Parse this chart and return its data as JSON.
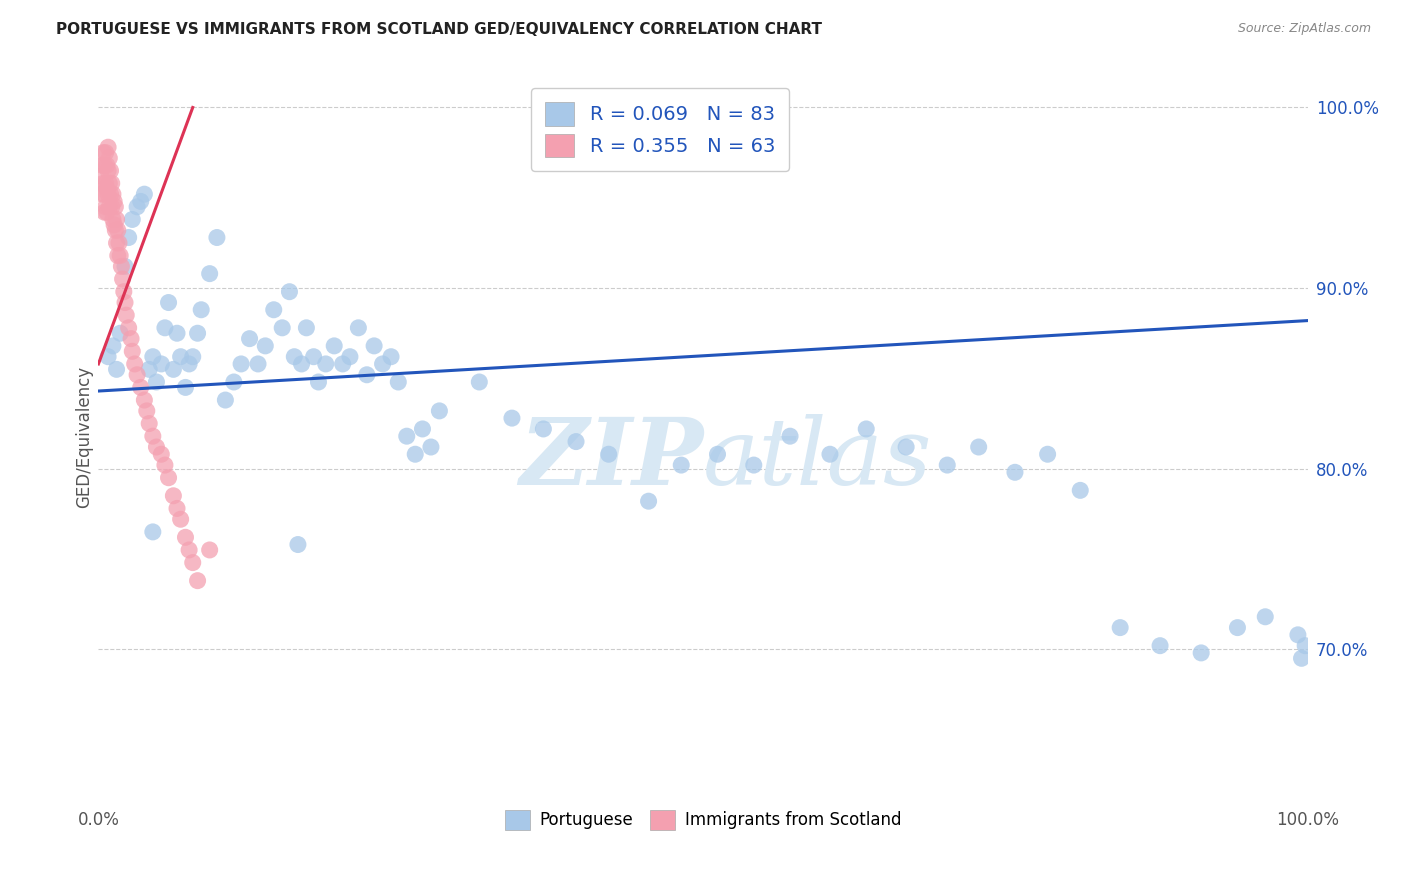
{
  "title": "PORTUGUESE VS IMMIGRANTS FROM SCOTLAND GED/EQUIVALENCY CORRELATION CHART",
  "source": "Source: ZipAtlas.com",
  "ylabel": "GED/Equivalency",
  "legend_r1": "R = 0.069",
  "legend_n1": "N = 83",
  "legend_r2": "R = 0.355",
  "legend_n2": "N = 63",
  "legend_label1": "Portuguese",
  "legend_label2": "Immigrants from Scotland",
  "blue_color": "#a8c8e8",
  "pink_color": "#f4a0b0",
  "blue_line_color": "#2255bb",
  "pink_line_color": "#dd3355",
  "watermark_color": "#d8e8f4",
  "title_color": "#222222",
  "source_color": "#888888",
  "ylabel_color": "#555555",
  "tick_color": "#555555",
  "ytick_color": "#2255bb",
  "grid_color": "#cccccc",
  "legend_text_color": "#2255bb",
  "xlim": [
    0.0,
    1.0
  ],
  "ylim": [
    0.615,
    1.02
  ],
  "yticks": [
    0.7,
    0.8,
    0.9,
    1.0
  ],
  "ytick_labels": [
    "70.0%",
    "80.0%",
    "90.0%",
    "100.0%"
  ],
  "xtick_positions": [
    0.0,
    1.0
  ],
  "xtick_labels": [
    "0.0%",
    "100.0%"
  ],
  "blue_trend_x": [
    0.0,
    1.0
  ],
  "blue_trend_y": [
    0.843,
    0.882
  ],
  "pink_trend_x": [
    0.0,
    0.078
  ],
  "pink_trend_y": [
    0.858,
    1.0
  ],
  "blue_x": [
    0.008,
    0.012,
    0.015,
    0.018,
    0.022,
    0.025,
    0.028,
    0.032,
    0.035,
    0.038,
    0.042,
    0.045,
    0.048,
    0.052,
    0.055,
    0.058,
    0.062,
    0.065,
    0.068,
    0.072,
    0.075,
    0.078,
    0.082,
    0.085,
    0.092,
    0.098,
    0.105,
    0.112,
    0.118,
    0.125,
    0.132,
    0.138,
    0.145,
    0.152,
    0.158,
    0.162,
    0.168,
    0.172,
    0.178,
    0.182,
    0.188,
    0.195,
    0.202,
    0.208,
    0.215,
    0.222,
    0.228,
    0.235,
    0.242,
    0.248,
    0.255,
    0.262,
    0.268,
    0.275,
    0.282,
    0.315,
    0.342,
    0.368,
    0.395,
    0.422,
    0.455,
    0.482,
    0.512,
    0.542,
    0.572,
    0.605,
    0.635,
    0.668,
    0.702,
    0.728,
    0.758,
    0.785,
    0.812,
    0.845,
    0.878,
    0.912,
    0.942,
    0.965,
    0.992,
    0.995,
    0.998,
    0.045,
    0.165
  ],
  "blue_y": [
    0.862,
    0.868,
    0.855,
    0.875,
    0.912,
    0.928,
    0.938,
    0.945,
    0.948,
    0.952,
    0.855,
    0.862,
    0.848,
    0.858,
    0.878,
    0.892,
    0.855,
    0.875,
    0.862,
    0.845,
    0.858,
    0.862,
    0.875,
    0.888,
    0.908,
    0.928,
    0.838,
    0.848,
    0.858,
    0.872,
    0.858,
    0.868,
    0.888,
    0.878,
    0.898,
    0.862,
    0.858,
    0.878,
    0.862,
    0.848,
    0.858,
    0.868,
    0.858,
    0.862,
    0.878,
    0.852,
    0.868,
    0.858,
    0.862,
    0.848,
    0.818,
    0.808,
    0.822,
    0.812,
    0.832,
    0.848,
    0.828,
    0.822,
    0.815,
    0.808,
    0.782,
    0.802,
    0.808,
    0.802,
    0.818,
    0.808,
    0.822,
    0.812,
    0.802,
    0.812,
    0.798,
    0.808,
    0.788,
    0.712,
    0.702,
    0.698,
    0.712,
    0.718,
    0.708,
    0.695,
    0.702,
    0.765,
    0.758
  ],
  "pink_x": [
    0.002,
    0.003,
    0.003,
    0.004,
    0.004,
    0.005,
    0.005,
    0.005,
    0.006,
    0.006,
    0.006,
    0.007,
    0.007,
    0.007,
    0.008,
    0.008,
    0.008,
    0.009,
    0.009,
    0.009,
    0.01,
    0.01,
    0.011,
    0.011,
    0.012,
    0.012,
    0.013,
    0.013,
    0.014,
    0.014,
    0.015,
    0.015,
    0.016,
    0.016,
    0.017,
    0.018,
    0.019,
    0.02,
    0.021,
    0.022,
    0.023,
    0.025,
    0.027,
    0.028,
    0.03,
    0.032,
    0.035,
    0.038,
    0.04,
    0.042,
    0.045,
    0.048,
    0.052,
    0.055,
    0.058,
    0.062,
    0.065,
    0.068,
    0.072,
    0.075,
    0.078,
    0.082,
    0.092
  ],
  "pink_y": [
    0.962,
    0.968,
    0.952,
    0.975,
    0.958,
    0.968,
    0.952,
    0.942,
    0.975,
    0.958,
    0.945,
    0.968,
    0.955,
    0.942,
    0.978,
    0.965,
    0.952,
    0.972,
    0.958,
    0.945,
    0.965,
    0.952,
    0.958,
    0.945,
    0.952,
    0.938,
    0.948,
    0.935,
    0.945,
    0.932,
    0.938,
    0.925,
    0.932,
    0.918,
    0.925,
    0.918,
    0.912,
    0.905,
    0.898,
    0.892,
    0.885,
    0.878,
    0.872,
    0.865,
    0.858,
    0.852,
    0.845,
    0.838,
    0.832,
    0.825,
    0.818,
    0.812,
    0.808,
    0.802,
    0.795,
    0.785,
    0.778,
    0.772,
    0.762,
    0.755,
    0.748,
    0.738,
    0.755
  ]
}
